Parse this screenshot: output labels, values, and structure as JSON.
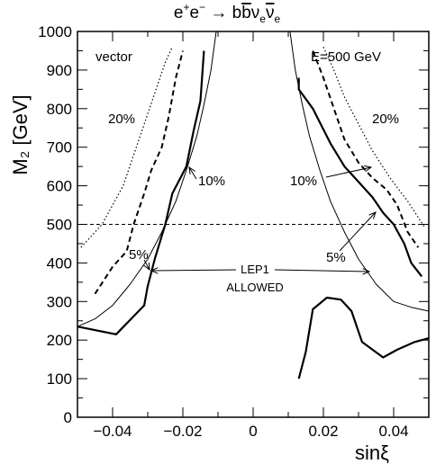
{
  "chart_data": {
    "type": "line",
    "title": {
      "lhs_e1": "e",
      "lhs_sup1": "+",
      "lhs_e2": "e",
      "lhs_sup2": "−",
      "arrow": " → ",
      "b1": "b",
      "b2": "b",
      "nu1": "ν",
      "nu1_sub": "e",
      "nu2": "ν",
      "nu2_sub": "e"
    },
    "xlabel": "sinξ",
    "ylabel": "M₂ [GeV]",
    "xlim": [
      -0.05,
      0.05
    ],
    "ylim": [
      0,
      1000
    ],
    "xticks": [
      -0.04,
      -0.02,
      0,
      0.02,
      0.04
    ],
    "xtick_labels": [
      "−0.04",
      "−0.02",
      "0",
      "0.02",
      "0.04"
    ],
    "yticks": [
      0,
      100,
      200,
      300,
      400,
      500,
      600,
      700,
      800,
      900,
      1000
    ],
    "ytick_labels": [
      "0",
      "100",
      "200",
      "300",
      "400",
      "500",
      "600",
      "700",
      "800",
      "900",
      "1000"
    ],
    "grid": false,
    "reference_line": {
      "y": 500,
      "style": "dashed"
    },
    "series": [
      {
        "style": "dotted",
        "segments": [
          [
            [
              -0.049,
              440
            ],
            [
              -0.043,
              500
            ],
            [
              -0.037,
              600
            ],
            [
              -0.034,
              680
            ],
            [
              -0.031,
              760
            ],
            [
              -0.028,
              840
            ],
            [
              -0.025,
              920
            ],
            [
              -0.023,
              960
            ]
          ],
          [
            [
              0.02,
              960
            ],
            [
              0.023,
              900
            ],
            [
              0.026,
              830
            ],
            [
              0.03,
              760
            ],
            [
              0.034,
              690
            ],
            [
              0.039,
              620
            ],
            [
              0.044,
              560
            ],
            [
              0.049,
              490
            ]
          ]
        ]
      },
      {
        "style": "dashed",
        "segments": [
          [
            [
              -0.045,
              320
            ],
            [
              -0.04,
              390
            ],
            [
              -0.036,
              430
            ],
            [
              -0.034,
              500
            ],
            [
              -0.031,
              580
            ],
            [
              -0.029,
              640
            ],
            [
              -0.026,
              700
            ],
            [
              -0.024,
              780
            ],
            [
              -0.022,
              880
            ],
            [
              -0.02,
              950
            ]
          ],
          [
            [
              0.017,
              950
            ],
            [
              0.02,
              880
            ],
            [
              0.023,
              800
            ],
            [
              0.026,
              720
            ],
            [
              0.03,
              660
            ],
            [
              0.034,
              620
            ],
            [
              0.038,
              590
            ],
            [
              0.041,
              550
            ],
            [
              0.044,
              480
            ],
            [
              0.047,
              440
            ]
          ]
        ]
      },
      {
        "style": "solid-thick",
        "segments": [
          [
            [
              -0.05,
              235
            ],
            [
              -0.039,
              215
            ],
            [
              -0.031,
              290
            ],
            [
              -0.03,
              340
            ],
            [
              -0.028,
              410
            ],
            [
              -0.025,
              500
            ],
            [
              -0.023,
              580
            ],
            [
              -0.019,
              650
            ],
            [
              -0.017,
              740
            ],
            [
              -0.015,
              820
            ],
            [
              -0.014,
              950
            ]
          ],
          [
            [
              0.013,
              880
            ],
            [
              0.013,
              850
            ],
            [
              0.017,
              800
            ],
            [
              0.022,
              710
            ],
            [
              0.026,
              650
            ],
            [
              0.03,
              610
            ],
            [
              0.034,
              570
            ],
            [
              0.037,
              530
            ],
            [
              0.04,
              500
            ],
            [
              0.043,
              450
            ],
            [
              0.045,
              400
            ],
            [
              0.048,
              365
            ]
          ],
          [
            [
              0.013,
              100
            ],
            [
              0.015,
              170
            ],
            [
              0.017,
              280
            ],
            [
              0.021,
              310
            ],
            [
              0.025,
              305
            ],
            [
              0.028,
              275
            ],
            [
              0.031,
              195
            ],
            [
              0.037,
              155
            ],
            [
              0.041,
              175
            ],
            [
              0.046,
              195
            ],
            [
              0.05,
              205
            ]
          ]
        ]
      },
      {
        "style": "solid-thin",
        "segments": [
          [
            [
              -0.05,
              235
            ],
            [
              -0.045,
              255
            ],
            [
              -0.04,
              290
            ],
            [
              -0.035,
              345
            ],
            [
              -0.03,
              410
            ],
            [
              -0.026,
              480
            ],
            [
              -0.022,
              560
            ],
            [
              -0.019,
              640
            ],
            [
              -0.016,
              730
            ],
            [
              -0.014,
              810
            ],
            [
              -0.012,
              900
            ],
            [
              -0.0105,
              1000
            ]
          ],
          [
            [
              0.0105,
              1000
            ],
            [
              0.012,
              900
            ],
            [
              0.014,
              810
            ],
            [
              0.016,
              730
            ],
            [
              0.019,
              640
            ],
            [
              0.022,
              560
            ],
            [
              0.026,
              480
            ],
            [
              0.03,
              410
            ],
            [
              0.035,
              345
            ],
            [
              0.04,
              300
            ],
            [
              0.045,
              285
            ],
            [
              0.05,
              275
            ]
          ]
        ]
      }
    ],
    "annotations": {
      "vector": "vector",
      "energy": "E=500 GeV",
      "p20_left": "20%",
      "p20_right": "20%",
      "p10_left": "10%",
      "p10_right": "10%",
      "p5_left": "5%",
      "p5_right": "5%",
      "lep1_line1": "LEP1",
      "lep1_line2": "ALLOWED"
    }
  }
}
